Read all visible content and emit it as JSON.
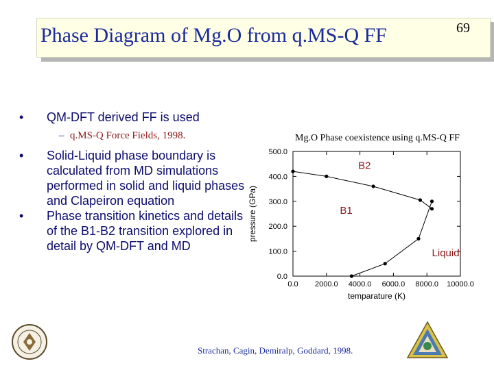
{
  "title": "Phase Diagram of Mg.O from q.MS-Q FF",
  "slide_number": "69",
  "bullets": [
    {
      "text": "QM-DFT derived FF is used",
      "sub": "q.MS-Q Force Fields, 1998."
    },
    {
      "text": "Solid-Liquid phase boundary is calculated from MD simulations performed in solid and liquid phases and Clapeiron equation"
    },
    {
      "text": "Phase transition kinetics and details of the B1-B2 transition explored in detail by QM-DFT and MD"
    }
  ],
  "citation": "Strachan, Cagin, Demiralp, Goddard, 1998.",
  "logos": {
    "left": "caltech-seal",
    "right": "msc-triangle-logo"
  },
  "chart_data": {
    "type": "line",
    "title": "Mg.O Phase coexistence using q.MS-Q FF",
    "xlabel": "temparature (K)",
    "ylabel": "pressure (GPa)",
    "xlim": [
      0,
      10000
    ],
    "ylim": [
      0,
      500
    ],
    "x_ticks": [
      "0.0",
      "2000.0",
      "4000.0",
      "6000.0",
      "8000.0",
      "10000.0"
    ],
    "y_ticks": [
      "0.0",
      "100.0",
      "200.0",
      "300.0",
      "400.0",
      "500.0"
    ],
    "annotations": [
      {
        "text": "B2",
        "x": 3900,
        "y": 430
      },
      {
        "text": "B1",
        "x": 2800,
        "y": 250
      },
      {
        "text": "Liquid",
        "x": 8300,
        "y": 80
      }
    ],
    "series": [
      {
        "points": [
          [
            0,
            420
          ],
          [
            2000,
            400
          ],
          [
            4800,
            360
          ],
          [
            7600,
            305
          ],
          [
            8300,
            270
          ]
        ]
      },
      {
        "points": [
          [
            3500,
            0
          ],
          [
            5500,
            50
          ],
          [
            7500,
            150
          ],
          [
            8300,
            300
          ]
        ]
      }
    ]
  }
}
